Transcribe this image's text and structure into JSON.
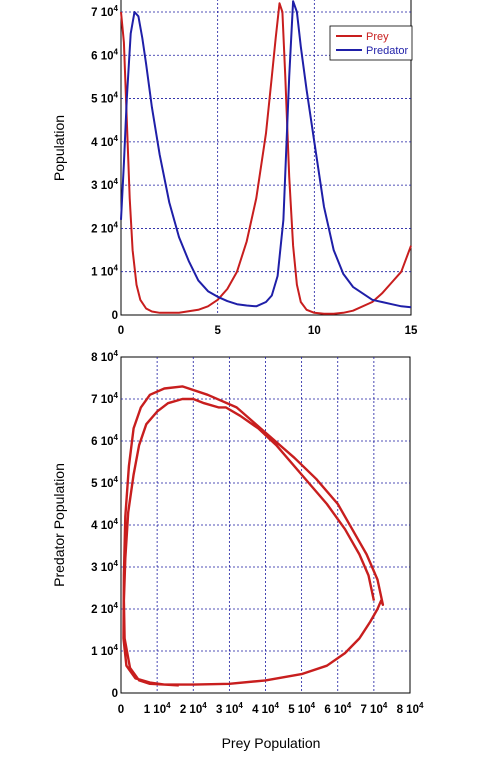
{
  "colors": {
    "prey": "#c81e1e",
    "predator": "#1f1fa8",
    "grid": "#1a1aa0",
    "axes": "#000000"
  },
  "chart_data": [
    {
      "type": "line",
      "title": "",
      "xlabel": "",
      "ylabel": "Population",
      "xlim": [
        0,
        15
      ],
      "ylim": [
        0,
        7.3
      ],
      "xticks": [
        0,
        5,
        10,
        15
      ],
      "xtick_labels": [
        "0",
        "5",
        "10",
        "15"
      ],
      "yticks": [
        0,
        1,
        2,
        3,
        4,
        5,
        6,
        7
      ],
      "ytick_labels": [
        "0",
        "1 10",
        "2 10",
        "3 10",
        "4 10",
        "5 10",
        "6 10",
        "7 10"
      ],
      "ytick_superscript": "4",
      "grid": true,
      "legend_position": "top-right",
      "series": [
        {
          "name": "Prey",
          "color": "#c81e1e",
          "x": [
            0,
            0.15,
            0.3,
            0.45,
            0.6,
            0.8,
            1.0,
            1.3,
            1.6,
            2.0,
            3.0,
            4.0,
            4.5,
            5.0,
            5.5,
            6.0,
            6.5,
            7.0,
            7.5,
            7.8,
            8.0,
            8.2,
            8.35,
            8.5,
            8.7,
            8.9,
            9.1,
            9.3,
            9.6,
            10.0,
            10.5,
            11.0,
            11.5,
            12.0,
            13.0,
            13.5,
            14.0,
            14.5,
            15.0
          ],
          "y": [
            7.0,
            6.3,
            4.5,
            2.7,
            1.5,
            0.7,
            0.35,
            0.15,
            0.08,
            0.05,
            0.05,
            0.12,
            0.2,
            0.35,
            0.6,
            1.0,
            1.7,
            2.7,
            4.2,
            5.5,
            6.4,
            7.2,
            7.0,
            5.5,
            3.2,
            1.6,
            0.7,
            0.3,
            0.12,
            0.05,
            0.03,
            0.03,
            0.05,
            0.1,
            0.3,
            0.5,
            0.75,
            1.0,
            1.6
          ]
        },
        {
          "name": "Predator",
          "color": "#1f1fa8",
          "x": [
            0,
            0.15,
            0.3,
            0.5,
            0.7,
            0.9,
            1.1,
            1.3,
            1.6,
            2.0,
            2.5,
            3.0,
            3.5,
            4.0,
            4.5,
            5.0,
            5.5,
            6.0,
            6.5,
            7.0,
            7.5,
            7.8,
            8.1,
            8.4,
            8.7,
            8.9,
            9.1,
            9.3,
            9.6,
            10.0,
            10.5,
            11.0,
            11.5,
            12.0,
            13.0,
            13.5,
            14.0,
            14.5,
            15.0
          ],
          "y": [
            2.2,
            3.5,
            5.0,
            6.5,
            7.0,
            6.9,
            6.4,
            5.8,
            4.8,
            3.7,
            2.6,
            1.8,
            1.25,
            0.8,
            0.55,
            0.42,
            0.32,
            0.25,
            0.22,
            0.2,
            0.3,
            0.45,
            0.9,
            2.2,
            5.5,
            7.25,
            7.0,
            6.2,
            5.2,
            4.0,
            2.5,
            1.5,
            0.95,
            0.65,
            0.35,
            0.3,
            0.25,
            0.2,
            0.18
          ]
        }
      ]
    },
    {
      "type": "line",
      "title": "",
      "xlabel": "Prey Population",
      "ylabel": "Predator Population",
      "xlim": [
        0,
        8
      ],
      "ylim": [
        0,
        8
      ],
      "xticks": [
        0,
        1,
        2,
        3,
        4,
        5,
        6,
        7,
        8
      ],
      "xtick_labels": [
        "0",
        "1 10",
        "2 10",
        "3 10",
        "4 10",
        "5 10",
        "6 10",
        "7 10",
        "8 10"
      ],
      "yticks": [
        0,
        1,
        2,
        3,
        4,
        5,
        6,
        7,
        8
      ],
      "ytick_labels": [
        "0",
        "1 10",
        "2 10",
        "3 10",
        "4 10",
        "5 10",
        "6 10",
        "7 10",
        "8 10"
      ],
      "tick_superscript": "4",
      "grid": true,
      "series": [
        {
          "name": "",
          "color": "#c81e1e",
          "x": [
            7.0,
            6.85,
            6.6,
            6.2,
            5.7,
            5.0,
            4.3,
            3.8,
            3.3,
            2.9,
            2.7,
            2.3,
            2.0,
            1.7,
            1.3,
            1.0,
            0.7,
            0.5,
            0.35,
            0.2,
            0.12,
            0.08,
            0.1,
            0.25,
            0.5,
            0.8,
            1.2,
            2.0,
            3.0,
            4.0,
            5.0,
            5.7,
            6.2,
            6.6,
            6.9,
            7.1,
            7.2,
            7.25,
            7.1,
            6.8,
            6.4,
            6.0,
            5.4,
            4.8,
            4.0,
            3.2,
            2.4,
            1.7,
            1.2,
            0.8,
            0.55,
            0.35,
            0.22,
            0.12,
            0.08,
            0.07,
            0.15,
            0.4,
            0.8,
            1.2,
            1.6
          ],
          "y": [
            2.2,
            2.8,
            3.3,
            3.9,
            4.5,
            5.2,
            5.9,
            6.3,
            6.6,
            6.8,
            6.8,
            6.9,
            7.0,
            7.0,
            6.9,
            6.7,
            6.4,
            5.9,
            5.2,
            4.3,
            3.2,
            2.2,
            1.3,
            0.6,
            0.3,
            0.22,
            0.2,
            0.2,
            0.22,
            0.3,
            0.45,
            0.65,
            0.95,
            1.3,
            1.7,
            2.0,
            2.2,
            2.1,
            2.7,
            3.3,
            3.9,
            4.5,
            5.1,
            5.6,
            6.2,
            6.8,
            7.1,
            7.3,
            7.25,
            7.1,
            6.8,
            6.3,
            5.4,
            4.2,
            2.8,
            1.3,
            0.65,
            0.35,
            0.25,
            0.2,
            0.18
          ]
        }
      ]
    }
  ],
  "legend": {
    "items": [
      {
        "label": "Prey"
      },
      {
        "label": "Predator"
      }
    ]
  }
}
